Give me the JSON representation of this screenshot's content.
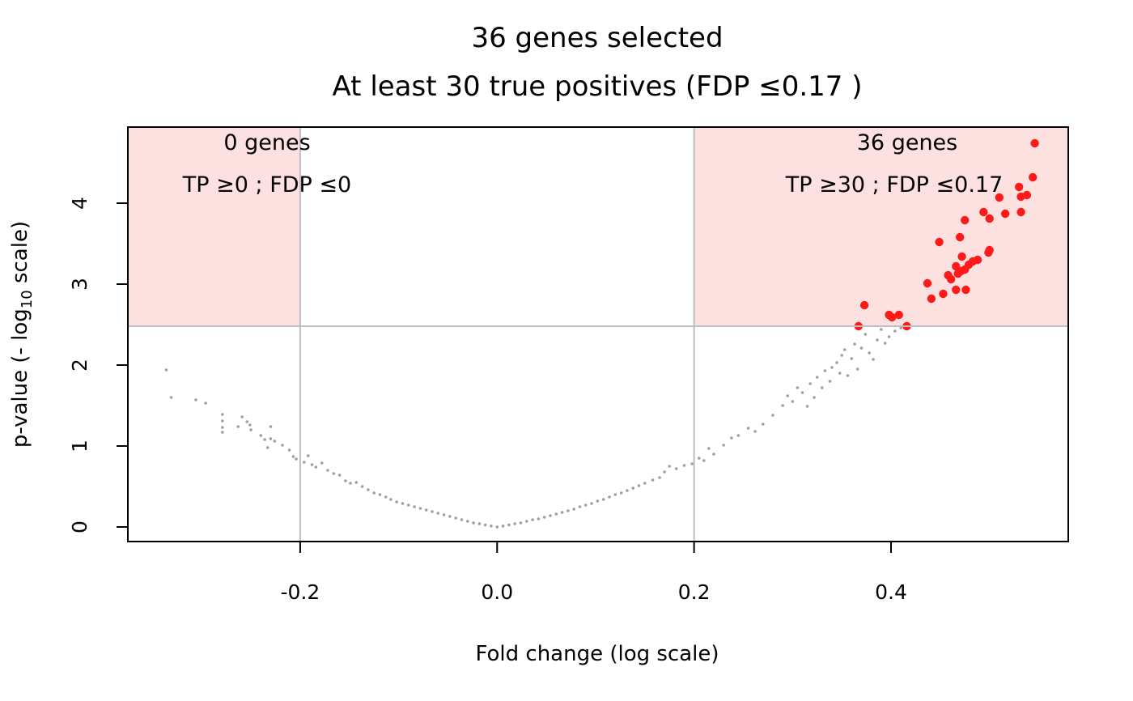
{
  "chart_data": {
    "type": "scatter",
    "title": "36 genes selected",
    "subtitle": "At least 30 true positives (FDP ≤0.17 )",
    "xlabel": "Fold change (log scale)",
    "ylabel_main": "p-value (- log",
    "ylabel_sub": "10",
    "ylabel_tail": " scale)",
    "xlim": [
      -0.375,
      0.58
    ],
    "ylim": [
      -0.18,
      4.94
    ],
    "xticks": [
      {
        "value": -0.2,
        "label": "-0.2"
      },
      {
        "value": 0.0,
        "label": "0.0"
      },
      {
        "value": 0.2,
        "label": "0.2"
      },
      {
        "value": 0.4,
        "label": "0.4"
      }
    ],
    "yticks": [
      {
        "value": 0,
        "label": "0"
      },
      {
        "value": 1,
        "label": "1"
      },
      {
        "value": 2,
        "label": "2"
      },
      {
        "value": 3,
        "label": "3"
      },
      {
        "value": 4,
        "label": "4"
      }
    ],
    "thresholds": {
      "x_low": -0.2,
      "x_high": 0.2,
      "y": 2.48
    },
    "region_color": "#fde0e0",
    "threshold_color": "#bebebe",
    "selected_color": "#ff1a1a",
    "background_color": "#7f7f7f",
    "annotations": {
      "left": {
        "count": "0 genes",
        "stats": "TP ≥0 ; FDP ≤0"
      },
      "right": {
        "count": "36 genes",
        "stats": "TP ≥30 ;  FDP ≤0.17"
      }
    },
    "selected_points": [
      [
        0.546,
        4.74
      ],
      [
        0.544,
        4.32
      ],
      [
        0.53,
        4.2
      ],
      [
        0.538,
        4.1
      ],
      [
        0.532,
        4.08
      ],
      [
        0.51,
        4.07
      ],
      [
        0.516,
        3.87
      ],
      [
        0.532,
        3.89
      ],
      [
        0.494,
        3.89
      ],
      [
        0.5,
        3.81
      ],
      [
        0.475,
        3.79
      ],
      [
        0.47,
        3.58
      ],
      [
        0.449,
        3.52
      ],
      [
        0.5,
        3.42
      ],
      [
        0.499,
        3.39
      ],
      [
        0.472,
        3.34
      ],
      [
        0.488,
        3.3
      ],
      [
        0.483,
        3.28
      ],
      [
        0.479,
        3.24
      ],
      [
        0.466,
        3.22
      ],
      [
        0.475,
        3.18
      ],
      [
        0.471,
        3.16
      ],
      [
        0.468,
        3.13
      ],
      [
        0.458,
        3.11
      ],
      [
        0.461,
        3.06
      ],
      [
        0.437,
        3.01
      ],
      [
        0.466,
        2.93
      ],
      [
        0.476,
        2.93
      ],
      [
        0.453,
        2.88
      ],
      [
        0.441,
        2.82
      ],
      [
        0.373,
        2.74
      ],
      [
        0.398,
        2.62
      ],
      [
        0.408,
        2.62
      ],
      [
        0.401,
        2.59
      ],
      [
        0.367,
        2.48
      ],
      [
        0.416,
        2.48
      ]
    ],
    "background_points": [
      [
        -0.336,
        1.94
      ],
      [
        -0.331,
        1.6
      ],
      [
        -0.306,
        1.57
      ],
      [
        -0.296,
        1.53
      ],
      [
        -0.279,
        1.39
      ],
      [
        -0.279,
        1.31
      ],
      [
        -0.279,
        1.23
      ],
      [
        -0.279,
        1.17
      ],
      [
        -0.263,
        1.24
      ],
      [
        -0.259,
        1.36
      ],
      [
        -0.254,
        1.3
      ],
      [
        -0.251,
        1.26
      ],
      [
        -0.25,
        1.2
      ],
      [
        -0.24,
        1.13
      ],
      [
        -0.236,
        1.08
      ],
      [
        -0.233,
        0.98
      ],
      [
        -0.23,
        1.09
      ],
      [
        -0.23,
        1.24
      ],
      [
        -0.226,
        1.06
      ],
      [
        -0.218,
        1.01
      ],
      [
        -0.211,
        0.95
      ],
      [
        -0.207,
        0.87
      ],
      [
        -0.204,
        0.84
      ],
      [
        -0.196,
        0.8
      ],
      [
        -0.192,
        0.88
      ],
      [
        -0.188,
        0.77
      ],
      [
        -0.184,
        0.74
      ],
      [
        -0.178,
        0.79
      ],
      [
        -0.172,
        0.7
      ],
      [
        -0.166,
        0.66
      ],
      [
        -0.16,
        0.64
      ],
      [
        -0.154,
        0.57
      ],
      [
        -0.149,
        0.54
      ],
      [
        -0.143,
        0.55
      ],
      [
        -0.137,
        0.5
      ],
      [
        -0.131,
        0.46
      ],
      [
        -0.125,
        0.42
      ],
      [
        -0.119,
        0.4
      ],
      [
        -0.113,
        0.37
      ],
      [
        -0.108,
        0.34
      ],
      [
        -0.102,
        0.31
      ],
      [
        -0.096,
        0.29
      ],
      [
        -0.09,
        0.27
      ],
      [
        -0.084,
        0.25
      ],
      [
        -0.078,
        0.23
      ],
      [
        -0.072,
        0.21
      ],
      [
        -0.066,
        0.19
      ],
      [
        -0.06,
        0.17
      ],
      [
        -0.054,
        0.15
      ],
      [
        -0.048,
        0.13
      ],
      [
        -0.042,
        0.11
      ],
      [
        -0.036,
        0.09
      ],
      [
        -0.03,
        0.07
      ],
      [
        -0.024,
        0.05
      ],
      [
        -0.018,
        0.04
      ],
      [
        -0.012,
        0.025
      ],
      [
        -0.006,
        0.012
      ],
      [
        0.0,
        0.0
      ],
      [
        0.006,
        0.012
      ],
      [
        0.012,
        0.025
      ],
      [
        0.018,
        0.04
      ],
      [
        0.024,
        0.05
      ],
      [
        0.03,
        0.07
      ],
      [
        0.036,
        0.09
      ],
      [
        0.042,
        0.1
      ],
      [
        0.048,
        0.12
      ],
      [
        0.054,
        0.14
      ],
      [
        0.06,
        0.16
      ],
      [
        0.066,
        0.18
      ],
      [
        0.072,
        0.2
      ],
      [
        0.078,
        0.22
      ],
      [
        0.084,
        0.25
      ],
      [
        0.09,
        0.27
      ],
      [
        0.096,
        0.29
      ],
      [
        0.102,
        0.32
      ],
      [
        0.108,
        0.34
      ],
      [
        0.114,
        0.37
      ],
      [
        0.12,
        0.4
      ],
      [
        0.126,
        0.42
      ],
      [
        0.132,
        0.45
      ],
      [
        0.138,
        0.48
      ],
      [
        0.144,
        0.51
      ],
      [
        0.15,
        0.54
      ],
      [
        0.158,
        0.58
      ],
      [
        0.165,
        0.61
      ],
      [
        0.17,
        0.68
      ],
      [
        0.175,
        0.75
      ],
      [
        0.182,
        0.72
      ],
      [
        0.19,
        0.76
      ],
      [
        0.198,
        0.78
      ],
      [
        0.205,
        0.85
      ],
      [
        0.21,
        0.82
      ],
      [
        0.215,
        0.97
      ],
      [
        0.22,
        0.9
      ],
      [
        0.23,
        1.01
      ],
      [
        0.238,
        1.1
      ],
      [
        0.245,
        1.13
      ],
      [
        0.255,
        1.22
      ],
      [
        0.262,
        1.18
      ],
      [
        0.27,
        1.27
      ],
      [
        0.28,
        1.38
      ],
      [
        0.29,
        1.5
      ],
      [
        0.295,
        1.62
      ],
      [
        0.3,
        1.55
      ],
      [
        0.305,
        1.72
      ],
      [
        0.31,
        1.66
      ],
      [
        0.315,
        1.49
      ],
      [
        0.318,
        1.77
      ],
      [
        0.322,
        1.6
      ],
      [
        0.325,
        1.85
      ],
      [
        0.33,
        1.72
      ],
      [
        0.333,
        1.93
      ],
      [
        0.338,
        1.8
      ],
      [
        0.34,
        1.97
      ],
      [
        0.345,
        2.03
      ],
      [
        0.348,
        1.9
      ],
      [
        0.35,
        2.12
      ],
      [
        0.353,
        2.19
      ],
      [
        0.356,
        1.87
      ],
      [
        0.36,
        2.08
      ],
      [
        0.363,
        2.26
      ],
      [
        0.366,
        1.95
      ],
      [
        0.37,
        2.21
      ],
      [
        0.374,
        2.38
      ],
      [
        0.378,
        2.15
      ],
      [
        0.382,
        2.07
      ],
      [
        0.386,
        2.31
      ],
      [
        0.39,
        2.44
      ],
      [
        0.394,
        2.27
      ],
      [
        0.398,
        2.35
      ],
      [
        0.404,
        2.42
      ],
      [
        0.41,
        2.46
      ]
    ]
  }
}
